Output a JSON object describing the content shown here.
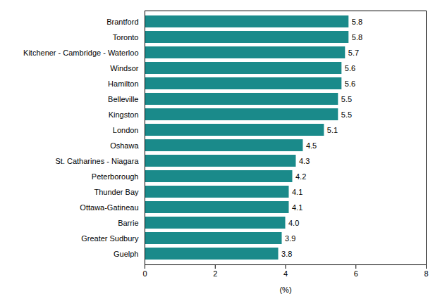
{
  "chart_data": {
    "type": "bar",
    "orientation": "horizontal",
    "categories": [
      "Brantford",
      "Toronto",
      "Kitchener - Cambridge - Waterloo",
      "Windsor",
      "Hamilton",
      "Belleville",
      "Kingston",
      "London",
      "Oshawa",
      "St. Catharines - Niagara",
      "Peterborough",
      "Thunder Bay",
      "Ottawa-Gatineau",
      "Barrie",
      "Greater Sudbury",
      "Guelph"
    ],
    "values": [
      5.8,
      5.8,
      5.7,
      5.6,
      5.6,
      5.5,
      5.5,
      5.1,
      4.5,
      4.3,
      4.2,
      4.1,
      4.1,
      4.0,
      3.9,
      3.8
    ],
    "value_labels": [
      "5.8",
      "5.8",
      "5.7",
      "5.6",
      "5.6",
      "5.5",
      "5.5",
      "5.1",
      "4.5",
      "4.3",
      "4.2",
      "4.1",
      "4.1",
      "4.0",
      "3.9",
      "3.8"
    ],
    "color": "#1a8a8a",
    "xlabel": "(%)",
    "xlim": [
      0,
      8
    ],
    "xticks": [
      0,
      2,
      4,
      6,
      8
    ],
    "data_labels": true,
    "grid": false
  }
}
